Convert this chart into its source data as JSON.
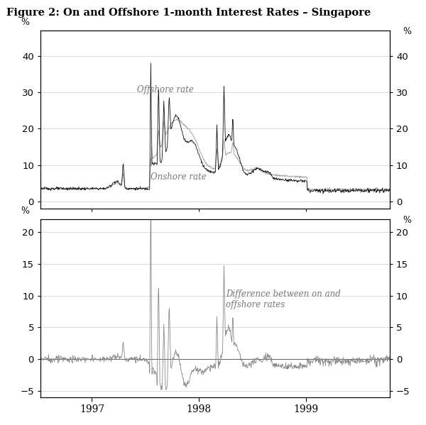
{
  "title": "Figure 2: On and Offshore 1-month Interest Rates – Singapore",
  "title_fontsize": 10.5,
  "title_fontweight": "bold",
  "background_color": "#ffffff",
  "top_panel": {
    "ylabel_left": "%",
    "ylabel_right": "%",
    "ylim": [
      -2,
      47
    ],
    "yticks": [
      0,
      10,
      20,
      30,
      40
    ],
    "offshore_label": "Offshore rate",
    "onshore_label": "Onshore rate",
    "offshore_color": "#111111",
    "onshore_color": "#999999",
    "offshore_linewidth": 0.6,
    "onshore_linewidth": 0.6
  },
  "bottom_panel": {
    "ylabel_left": "%",
    "ylabel_right": "%",
    "ylim": [
      -6,
      22
    ],
    "yticks": [
      -5,
      0,
      5,
      10,
      15,
      20
    ],
    "diff_label": "Difference between on and\noffshore rates",
    "diff_color": "#888888",
    "diff_linewidth": 0.6
  },
  "xtick_years": [
    1997,
    1998,
    1999
  ],
  "grid_color": "#cccccc",
  "grid_linewidth": 0.5,
  "axis_linewidth": 0.8,
  "n_points": 900
}
